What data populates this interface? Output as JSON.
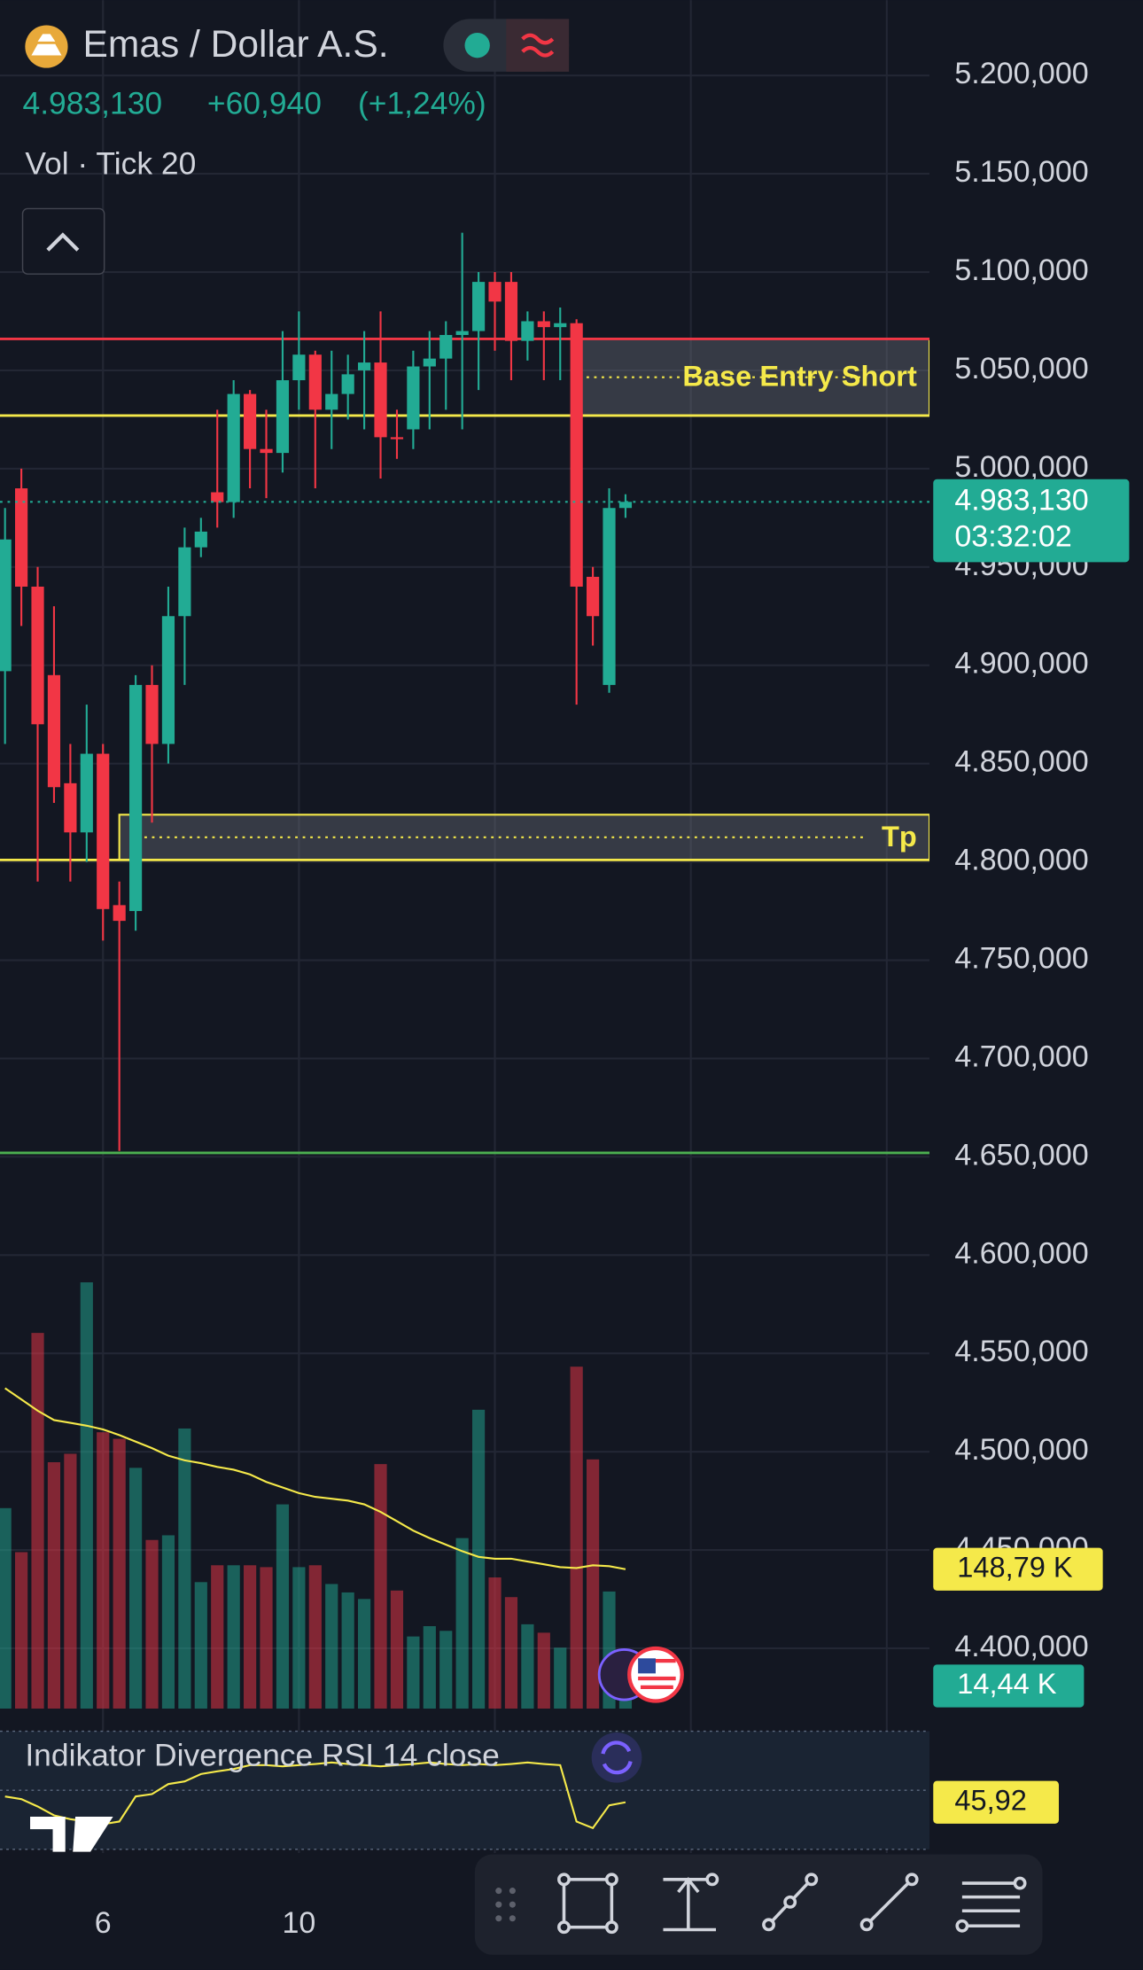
{
  "header": {
    "symbol": "Emas / Dollar A.S.",
    "price": "4.983,130",
    "change": "+60,940",
    "change_pct": "(+1,24%)",
    "volume_label": "Vol · Tick 20",
    "indicator": "Indikator Divergence RSI 14 close"
  },
  "chart_data": {
    "type": "candlestick",
    "x_labels": [
      {
        "value": 6,
        "label": "6"
      },
      {
        "value": 18,
        "label": "10"
      }
    ],
    "x_grid": [
      6,
      18,
      30,
      42,
      54
    ],
    "ylim": [
      4400000,
      5200000
    ],
    "yticks": [
      {
        "value": 5200000,
        "label": "5.200,000"
      },
      {
        "value": 5150000,
        "label": "5.150,000"
      },
      {
        "value": 5100000,
        "label": "5.100,000"
      },
      {
        "value": 5050000,
        "label": "5.050,000"
      },
      {
        "value": 5000000,
        "label": "5.000,000"
      },
      {
        "value": 4950000,
        "label": "4.950,000"
      },
      {
        "value": 4900000,
        "label": "4.900,000"
      },
      {
        "value": 4850000,
        "label": "4.850,000"
      },
      {
        "value": 4800000,
        "label": "4.800,000"
      },
      {
        "value": 4750000,
        "label": "4.750,000"
      },
      {
        "value": 4700000,
        "label": "4.700,000"
      },
      {
        "value": 4650000,
        "label": "4.650,000"
      },
      {
        "value": 4600000,
        "label": "4.600,000"
      },
      {
        "value": 4550000,
        "label": "4.550,000"
      },
      {
        "value": 4500000,
        "label": "4.500,000"
      },
      {
        "value": 4450000,
        "label": "4.450,000"
      },
      {
        "value": 4400000,
        "label": "4.400,000"
      }
    ],
    "up_color": "#22ab94",
    "down_color": "#f23645",
    "open": [
      4897000,
      4990000,
      4940000,
      4895000,
      4840000,
      4815000,
      4855000,
      4778000,
      4775000,
      4890000,
      4860000,
      4925000,
      4960000,
      4988000,
      4983000,
      5038000,
      5010000,
      5008000,
      5045000,
      5058000,
      5030000,
      5038000,
      5050000,
      5054000,
      5016000,
      5020000,
      5052000,
      5056000,
      5068000,
      5070000,
      5095000,
      5095000,
      5065000,
      5075000,
      5072000,
      5074000,
      4945000,
      4890000,
      4980000
    ],
    "high": [
      4980000,
      5000000,
      4950000,
      4930000,
      4860000,
      4880000,
      4860000,
      4790000,
      4895000,
      4900000,
      4940000,
      4970000,
      4975000,
      5030000,
      5045000,
      5040000,
      5030000,
      5070000,
      5080000,
      5060000,
      5060000,
      5058000,
      5070000,
      5080000,
      5030000,
      5060000,
      5070000,
      5075000,
      5120000,
      5100000,
      5100000,
      5100000,
      5080000,
      5080000,
      5082000,
      5076000,
      4950000,
      4990000,
      4987000
    ],
    "low": [
      4860000,
      4920000,
      4790000,
      4830000,
      4790000,
      4800000,
      4760000,
      4653000,
      4765000,
      4820000,
      4850000,
      4890000,
      4955000,
      4970000,
      4975000,
      4990000,
      4985000,
      4998000,
      5030000,
      4990000,
      5010000,
      5025000,
      5020000,
      4995000,
      5005000,
      5010000,
      5020000,
      5030000,
      5020000,
      5040000,
      5060000,
      5045000,
      5055000,
      5045000,
      5045000,
      4880000,
      4910000,
      4886000,
      4975000
    ],
    "close": [
      4964000,
      4940000,
      4870000,
      4838000,
      4815000,
      4855000,
      4776000,
      4770000,
      4890000,
      4860000,
      4925000,
      4960000,
      4968000,
      4983000,
      5038000,
      5010000,
      5008000,
      5045000,
      5058000,
      5030000,
      5038000,
      5048000,
      5054000,
      5016000,
      5015000,
      5052000,
      5056000,
      5068000,
      5070000,
      5095000,
      5085000,
      5065000,
      5075000,
      5072000,
      5074000,
      4940000,
      4925000,
      4980000,
      4983130
    ],
    "last_price_label": "4.983,130",
    "countdown": "03:32:02",
    "lines": [
      {
        "value": 5066000,
        "color": "#f23645"
      },
      {
        "value": 5027000,
        "color": "#f5e94a"
      },
      {
        "value": 4801000,
        "color": "#f5e94a"
      },
      {
        "value": 4652000,
        "color": "#4caf50"
      }
    ],
    "boxes": [
      {
        "label": "Base Entry Short",
        "top": 5066000,
        "bottom": 5027000,
        "start": 35
      },
      {
        "label": "Tp",
        "top": 4824000,
        "bottom": 4801000,
        "start": 7
      }
    ],
    "volume": {
      "ylim": [
        0,
        468
      ],
      "values": [
        214,
        167,
        401,
        263,
        272,
        455,
        295,
        288,
        257,
        180,
        185,
        299,
        135,
        153,
        153,
        153,
        151,
        218,
        151,
        153,
        133,
        124,
        117,
        261,
        126,
        77,
        88,
        83,
        182,
        319,
        140,
        119,
        90,
        81,
        65,
        365,
        266,
        125,
        14.44
      ],
      "value_label": "14,44 K",
      "ma": [
        342,
        330,
        318,
        308,
        305,
        302,
        298,
        292,
        285,
        278,
        270,
        265,
        262,
        258,
        255,
        250,
        242,
        236,
        230,
        226,
        224,
        222,
        218,
        210,
        200,
        190,
        182,
        175,
        168,
        162,
        160,
        160,
        157,
        154,
        151,
        150,
        153,
        152,
        148.79
      ],
      "ma_label": "148,79 K",
      "ma_color": "#f5e94a"
    },
    "rsi": {
      "ylim": [
        30,
        70
      ],
      "values": [
        47.9,
        47.0,
        44.5,
        41.5,
        40.2,
        39.4,
        38.5,
        39.4,
        47.9,
        48.7,
        52.1,
        53.0,
        55.5,
        56.4,
        57.2,
        58.5,
        58.5,
        58.1,
        58.5,
        58.9,
        59.4,
        58.9,
        58.5,
        58.1,
        58.5,
        58.9,
        59.4,
        58.9,
        58.5,
        58.9,
        58.5,
        58.9,
        59.4,
        58.9,
        58.5,
        39.4,
        37.2,
        44.9,
        45.92
      ],
      "value_label": "45,92",
      "color": "#f5e94a"
    }
  }
}
